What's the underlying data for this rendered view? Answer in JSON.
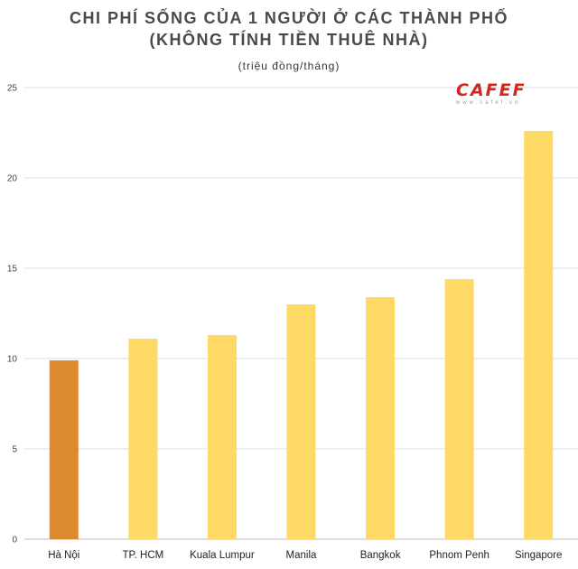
{
  "chart_data": {
    "type": "bar",
    "title": "CHI PHÍ SỐNG CỦA 1 NGƯỜI Ở CÁC THÀNH PHỐ",
    "subtitle": "(KHÔNG TÍNH TIỀN THUÊ NHÀ)",
    "unit_label": "(triệu đồng/tháng)",
    "categories": [
      "Hà Nội",
      "TP. HCM",
      "Kuala Lumpur",
      "Manila",
      "Bangkok",
      "Phnom Penh",
      "Singapore"
    ],
    "values": [
      9.9,
      11.1,
      11.3,
      13.0,
      13.4,
      14.4,
      22.6
    ],
    "colors": [
      "#dc8a30",
      "#ffd966",
      "#ffd966",
      "#ffd966",
      "#ffd966",
      "#ffd966",
      "#ffd966"
    ],
    "ylim": [
      0,
      25
    ],
    "yticks": [
      0,
      5,
      10,
      15,
      20,
      25
    ],
    "ytick_labels": [
      "0",
      "5",
      "10",
      "15",
      "20",
      "25"
    ],
    "grid": true,
    "xlabel": "",
    "ylabel": ""
  },
  "watermark": {
    "brand": "CAFEF",
    "url": "www.cafef.vn"
  }
}
